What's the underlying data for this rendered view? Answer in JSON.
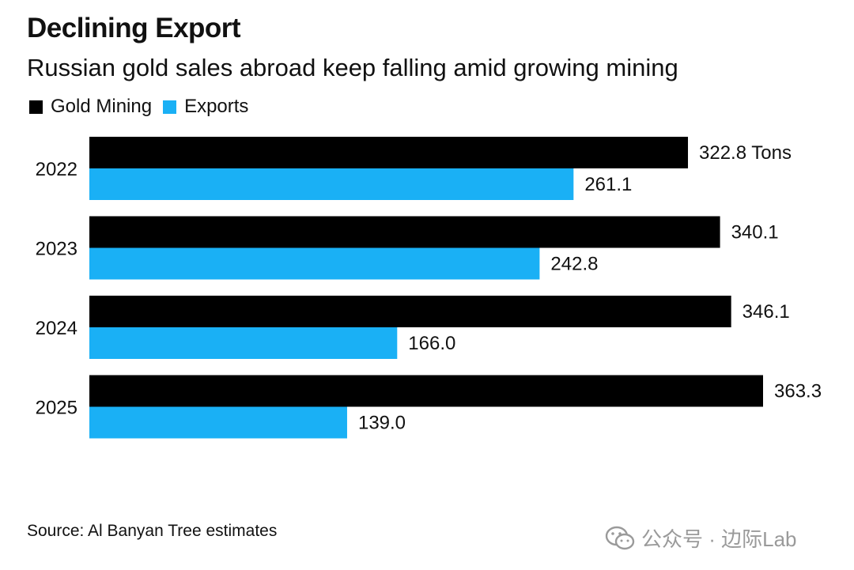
{
  "header": {
    "title": "Declining Export",
    "subtitle": "Russian gold sales abroad keep falling amid growing mining"
  },
  "legend": [
    {
      "label": "Gold Mining",
      "color": "#000000"
    },
    {
      "label": "Exports",
      "color": "#1ab0f5"
    }
  ],
  "chart_data": {
    "type": "bar",
    "orientation": "horizontal",
    "title": "Declining Export",
    "subtitle": "Russian gold sales abroad keep falling amid growing mining",
    "categories": [
      "2022",
      "2023",
      "2024",
      "2025"
    ],
    "series": [
      {
        "name": "Gold Mining",
        "color": "#000000",
        "values": [
          322.8,
          340.1,
          346.1,
          363.3
        ],
        "labels": [
          "322.8 Tons",
          "340.1",
          "346.1",
          "363.3"
        ]
      },
      {
        "name": "Exports",
        "color": "#1ab0f5",
        "values": [
          261.1,
          242.8,
          166.0,
          139.0
        ],
        "labels": [
          "261.1",
          "242.8",
          "166.0",
          "139.0"
        ]
      }
    ],
    "unit": "Tons",
    "xlim": [
      0,
      363.3
    ],
    "grid": false,
    "legend_position": "top-left"
  },
  "footer": {
    "source": "Source: Al Banyan Tree estimates",
    "watermark": "公众号 · 边际Lab",
    "watermark_icon": "wechat-icon"
  }
}
